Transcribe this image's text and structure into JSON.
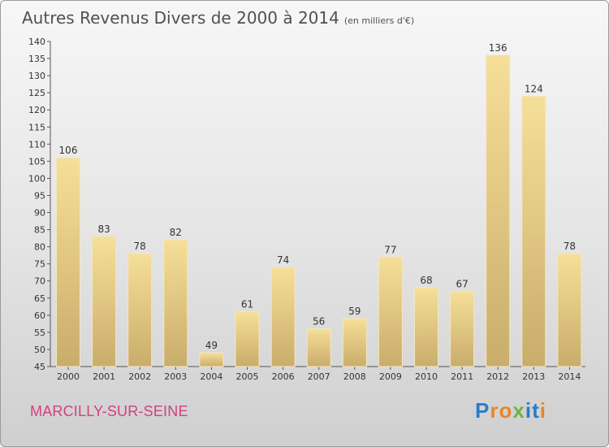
{
  "title": "Autres Revenus Divers de 2000 à 2014",
  "unit": "(en milliers d'€)",
  "location": "MARCILLY-SUR-SEINE",
  "brand": "Proxiti",
  "chart_data": {
    "type": "bar",
    "categories": [
      "2000",
      "2001",
      "2002",
      "2003",
      "2004",
      "2005",
      "2006",
      "2007",
      "2008",
      "2009",
      "2010",
      "2011",
      "2012",
      "2013",
      "2014"
    ],
    "values": [
      106,
      83,
      78,
      82,
      49,
      61,
      74,
      56,
      59,
      77,
      68,
      67,
      136,
      124,
      78
    ],
    "ylim": [
      45,
      140
    ],
    "yticks": [
      45,
      50,
      55,
      60,
      65,
      70,
      75,
      80,
      85,
      90,
      95,
      100,
      105,
      110,
      115,
      120,
      125,
      130,
      135,
      140
    ],
    "grid": false,
    "bar_color": "#e8cf8a"
  }
}
